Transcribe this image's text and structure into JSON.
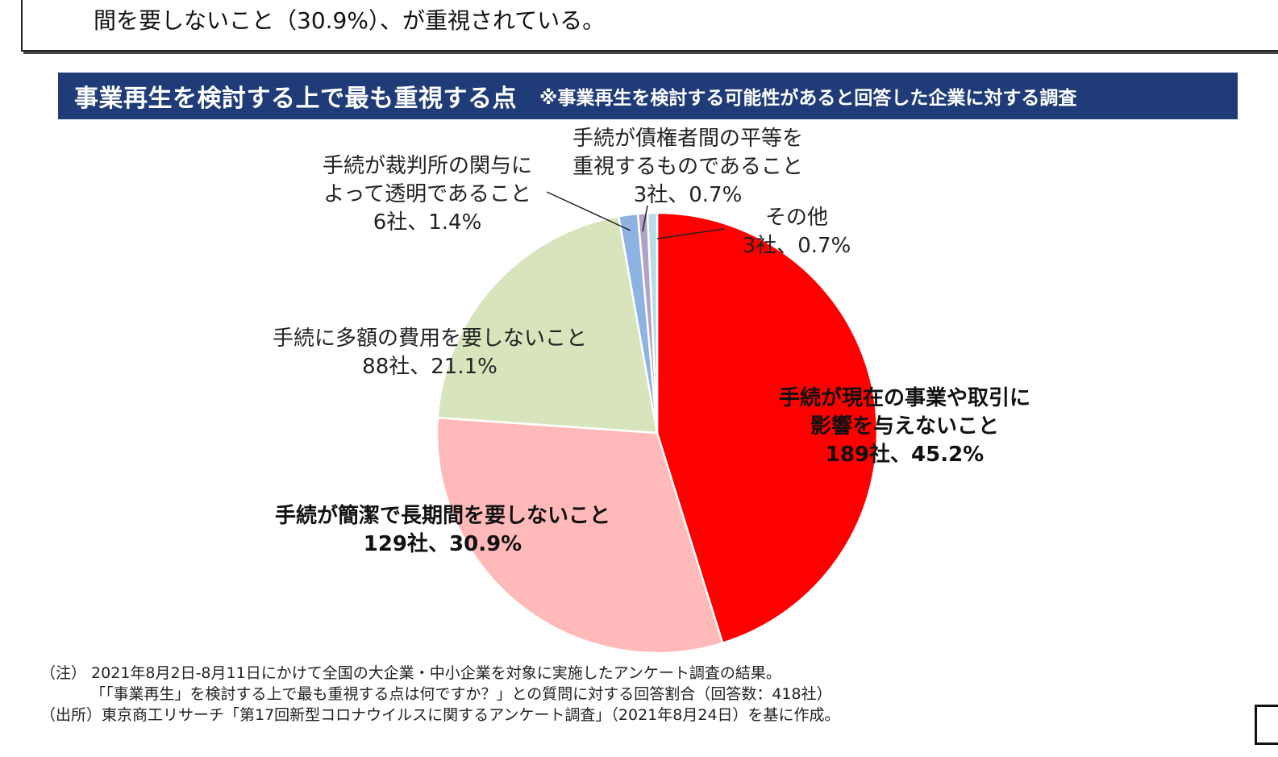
{
  "summary": {
    "line": "間を要しないこと（30.9%）、が重視されている。"
  },
  "header": {
    "title": "事業再生を検討する上で最も重視する点",
    "subtitle": "※事業再生を検討する可能性があると回答した企業に対する調査"
  },
  "chart_data": {
    "type": "pie",
    "title": "事業再生を検討する上で最も重視する点",
    "start_angle_deg": 0,
    "direction": "clockwise",
    "legend": "none",
    "slices": [
      {
        "label": [
          "手続が現在の事業や取引に",
          "影響を与えないこと"
        ],
        "value_text": "189社、45.2%",
        "count": 189,
        "percent": 45.2,
        "color": "#ff0000",
        "bold": true
      },
      {
        "label": [
          "手続が簡潔で長期間を要しないこと"
        ],
        "value_text": "129社、30.9%",
        "count": 129,
        "percent": 30.9,
        "color": "#ffb9b9",
        "bold": true
      },
      {
        "label": [
          "手続に多額の費用を要しないこと"
        ],
        "value_text": "88社、21.1%",
        "count": 88,
        "percent": 21.1,
        "color": "#d8e4bc",
        "bold": false
      },
      {
        "label": [
          "手続が裁判所の関与に",
          "よって透明であること"
        ],
        "value_text": "6社、1.4%",
        "count": 6,
        "percent": 1.4,
        "color": "#8db3e2",
        "bold": false
      },
      {
        "label": [
          "手続が債権者間の平等を",
          "重視するものであること"
        ],
        "value_text": "3社、0.7%",
        "count": 3,
        "percent": 0.7,
        "color": "#b3a2c7",
        "bold": false
      },
      {
        "label": [
          "その他"
        ],
        "value_text": "3社、0.7%",
        "count": 3,
        "percent": 0.7,
        "color": "#b7dde8",
        "bold": false
      }
    ]
  },
  "notes": {
    "line1": "（注） 2021年8月2日-8月11日にかけて全国の大企業・中小企業を対象に実施したアンケート調査の結果。",
    "line2": "「「事業再生」を検討する上で最も重視する点は何ですか？」との質問に対する回答割合（回答数：418社）",
    "line3": "（出所）東京商工リサーチ「第17回新型コロナウイルスに関するアンケート調査」（2021年8月24日）を基に作成。"
  }
}
